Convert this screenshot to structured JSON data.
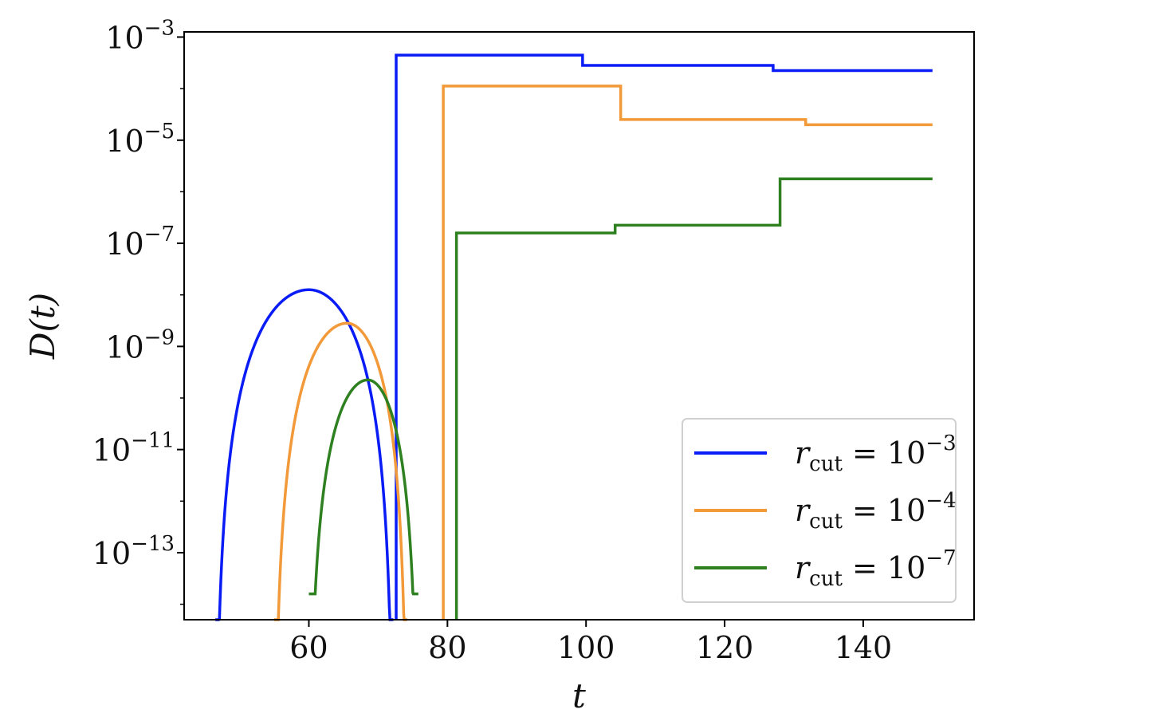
{
  "chart_data": {
    "type": "line",
    "xlabel": "t",
    "ylabel": "D(t)",
    "yscale": "log",
    "xlim": [
      42,
      156
    ],
    "ylim_exp": [
      -14.3,
      -2.9
    ],
    "x_ticks": [
      60,
      80,
      100,
      120,
      140
    ],
    "y_ticks": [
      {
        "exp": -3,
        "base": "10",
        "sup": "−3"
      },
      {
        "exp": -5,
        "base": "10",
        "sup": "−5"
      },
      {
        "exp": -7,
        "base": "10",
        "sup": "−7"
      },
      {
        "exp": -9,
        "base": "10",
        "sup": "−9"
      },
      {
        "exp": -11,
        "base": "10",
        "sup": "−11"
      },
      {
        "exp": -13,
        "base": "10",
        "sup": "−13"
      }
    ],
    "grid": false,
    "legend_position": "lower-right",
    "series": [
      {
        "name": "r_cut = 10^-3",
        "legend": {
          "sym": "r",
          "sub": "cut",
          "eq": " = 10",
          "sup": "−3"
        },
        "color": "#0a1cf5",
        "arc": {
          "t_start": 46.5,
          "t_end": 72.2,
          "t_peak": 60,
          "log_peak": -7.9
        },
        "steps": [
          [
            72.6,
            -3.35
          ],
          [
            99.5,
            -3.55
          ],
          [
            127.0,
            -3.65
          ],
          [
            150,
            -3.65
          ]
        ]
      },
      {
        "name": "r_cut = 10^-4",
        "legend": {
          "sym": "r",
          "sub": "cut",
          "eq": " = 10",
          "sup": "−4"
        },
        "color": "#f29a3a",
        "arc": {
          "t_start": 55.0,
          "t_end": 74.2,
          "t_peak": 65.5,
          "log_peak": -8.55
        },
        "steps": [
          [
            79.4,
            -3.95
          ],
          [
            105.0,
            -4.6
          ],
          [
            131.7,
            -4.7
          ],
          [
            150,
            -4.7
          ]
        ]
      },
      {
        "name": "r_cut = 10^-7",
        "legend": {
          "sym": "r",
          "sub": "cut",
          "eq": " = 10",
          "sup": "−7"
        },
        "color": "#2e8020",
        "arc": {
          "t_start": 60.0,
          "t_end": 75.8,
          "t_peak": 68.5,
          "log_peak": -9.65,
          "log_start": -13.8
        },
        "steps": [
          [
            81.3,
            -6.8
          ],
          [
            104.2,
            -6.65
          ],
          [
            128.0,
            -5.75
          ],
          [
            150,
            -5.75
          ]
        ]
      }
    ]
  }
}
